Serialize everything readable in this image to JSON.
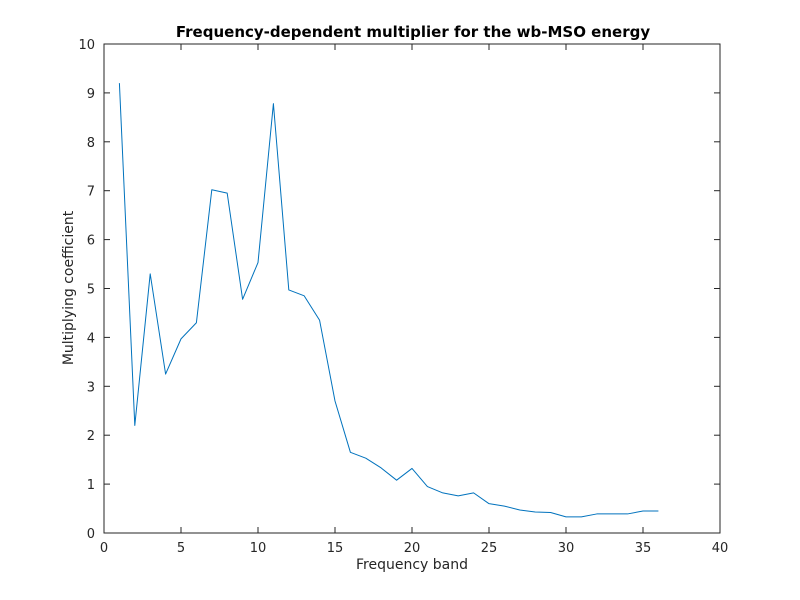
{
  "chart_data": {
    "type": "line",
    "title": "Frequency-dependent multiplier for the wb-MSO energy",
    "xlabel": "Frequency band",
    "ylabel": "Multiplying coefficient",
    "xlim": [
      0,
      40
    ],
    "ylim": [
      0,
      10
    ],
    "xticks": [
      0,
      5,
      10,
      15,
      20,
      25,
      30,
      35,
      40
    ],
    "yticks": [
      0,
      1,
      2,
      3,
      4,
      5,
      6,
      7,
      8,
      9,
      10
    ],
    "grid": false,
    "series_color": "#0072bd",
    "series": [
      {
        "x": [
          1,
          2,
          3,
          4,
          5,
          6,
          7,
          8,
          9,
          10,
          11,
          12,
          13,
          14,
          15,
          16,
          17,
          18,
          19,
          20,
          21,
          22,
          23,
          24,
          25,
          26,
          27,
          28,
          29,
          30,
          31,
          32,
          33,
          34,
          35,
          36
        ],
        "values": [
          9.2,
          2.2,
          5.3,
          3.25,
          3.97,
          4.3,
          7.02,
          6.95,
          4.78,
          5.53,
          8.78,
          4.97,
          4.85,
          4.35,
          2.7,
          1.65,
          1.53,
          1.33,
          1.08,
          1.32,
          0.95,
          0.82,
          0.76,
          0.82,
          0.6,
          0.55,
          0.47,
          0.43,
          0.42,
          0.33,
          0.33,
          0.39,
          0.39,
          0.39,
          0.45,
          0.45
        ]
      }
    ]
  }
}
